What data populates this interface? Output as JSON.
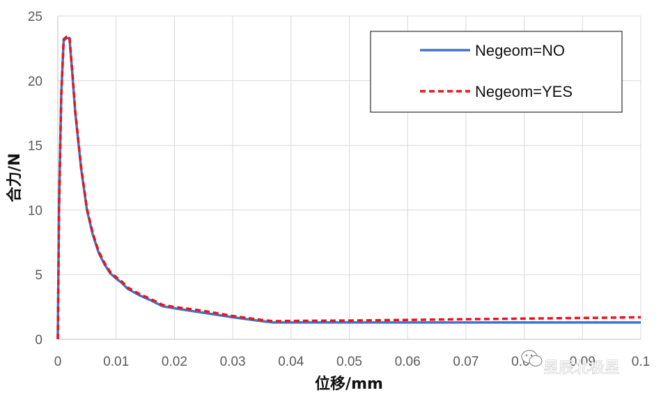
{
  "chart_data": {
    "type": "line",
    "title": "",
    "xlabel": "位移/mm",
    "ylabel": "合力/N",
    "xlim": [
      0,
      0.1
    ],
    "ylim": [
      0,
      25
    ],
    "xticks": [
      0,
      0.01,
      0.02,
      0.03,
      0.04,
      0.05,
      0.06,
      0.07,
      0.08,
      0.09,
      0.1
    ],
    "xtick_labels": [
      "0",
      "0.01",
      "0.02",
      "0.03",
      "0.04",
      "0.05",
      "0.06",
      "0.07",
      "0.08",
      "0.09",
      "0.1"
    ],
    "yticks": [
      0,
      5,
      10,
      15,
      20,
      25
    ],
    "ytick_labels": [
      "0",
      "5",
      "10",
      "15",
      "20",
      "25"
    ],
    "grid": true,
    "legend_position": "top-right",
    "series": [
      {
        "name": "Negeom=NO",
        "color": "#4472C4",
        "dash": "solid",
        "x": [
          0,
          0.0002,
          0.0006,
          0.001,
          0.0015,
          0.002,
          0.0025,
          0.003,
          0.004,
          0.005,
          0.006,
          0.007,
          0.008,
          0.009,
          0.01,
          0.011,
          0.012,
          0.014,
          0.016,
          0.018,
          0.02,
          0.025,
          0.03,
          0.035,
          0.037,
          0.04,
          0.05,
          0.06,
          0.07,
          0.08,
          0.09,
          0.1
        ],
        "y": [
          0,
          10,
          19,
          23.1,
          23.3,
          23.3,
          20.5,
          17.5,
          13.2,
          10.0,
          8.1,
          6.7,
          5.8,
          5.1,
          4.7,
          4.35,
          3.9,
          3.4,
          3.0,
          2.55,
          2.4,
          2.05,
          1.7,
          1.4,
          1.3,
          1.3,
          1.3,
          1.3,
          1.3,
          1.3,
          1.3,
          1.3
        ]
      },
      {
        "name": "Negeom=YES",
        "color": "#E8141B",
        "dash": "dashed",
        "x": [
          0,
          0.0002,
          0.0006,
          0.001,
          0.0015,
          0.002,
          0.0025,
          0.003,
          0.004,
          0.005,
          0.006,
          0.007,
          0.008,
          0.009,
          0.01,
          0.011,
          0.012,
          0.014,
          0.016,
          0.018,
          0.02,
          0.025,
          0.03,
          0.035,
          0.037,
          0.04,
          0.05,
          0.06,
          0.07,
          0.08,
          0.09,
          0.1
        ],
        "y": [
          0,
          10,
          19,
          23.2,
          23.4,
          23.4,
          20.6,
          17.6,
          13.3,
          10.1,
          8.2,
          6.8,
          5.9,
          5.2,
          4.8,
          4.45,
          4.0,
          3.5,
          3.1,
          2.65,
          2.5,
          2.2,
          1.8,
          1.5,
          1.4,
          1.42,
          1.45,
          1.5,
          1.55,
          1.6,
          1.65,
          1.7
        ]
      }
    ]
  },
  "watermark": {
    "text": "星辰北极星",
    "icon": "wechat-icon"
  }
}
